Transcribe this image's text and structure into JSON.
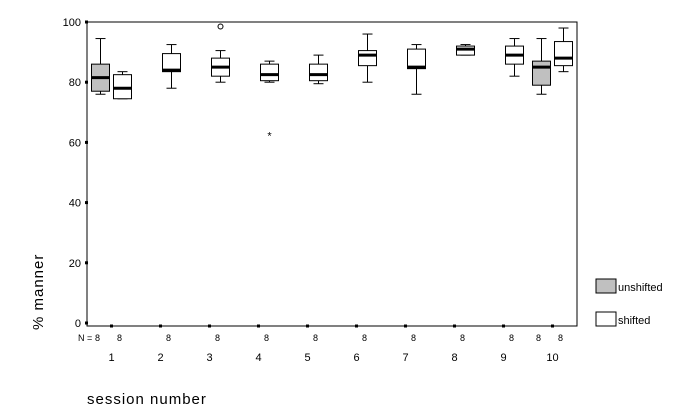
{
  "chart_data": {
    "type": "boxplot",
    "xlabel": "session number",
    "ylabel": "% manner",
    "ylim": [
      0,
      100
    ],
    "yticks": [
      "0",
      "20",
      "40",
      "60",
      "80",
      "100"
    ],
    "categories": [
      "1",
      "2",
      "3",
      "4",
      "5",
      "6",
      "7",
      "8",
      "9",
      "10"
    ],
    "n_label": "N =",
    "legend_position": "bottom-right",
    "series": [
      {
        "name": "unshifted",
        "color": "#c0c0c0",
        "boxes": [
          {
            "category": "1",
            "n": "8",
            "min": 76,
            "q1": 77,
            "median": 81.5,
            "q3": 86,
            "max": 94.5,
            "outliers": [],
            "extremes": []
          },
          {
            "category": "10",
            "n": "8",
            "min": 76,
            "q1": 79,
            "median": 85,
            "q3": 87,
            "max": 94.5,
            "outliers": [],
            "extremes": []
          }
        ]
      },
      {
        "name": "shifted",
        "color": "#ffffff",
        "boxes": [
          {
            "category": "1",
            "n": "8",
            "min": 74.5,
            "q1": 74.5,
            "median": 78,
            "q3": 82.5,
            "max": 83.5,
            "outliers": [],
            "extremes": []
          },
          {
            "category": "2",
            "n": "8",
            "min": 78,
            "q1": 83.5,
            "median": 84,
            "q3": 89.5,
            "max": 92.5,
            "outliers": [],
            "extremes": []
          },
          {
            "category": "3",
            "n": "8",
            "min": 80,
            "q1": 82,
            "median": 85,
            "q3": 88,
            "max": 90.5,
            "outliers": [
              98.5
            ],
            "extremes": []
          },
          {
            "category": "4",
            "n": "8",
            "min": 80,
            "q1": 80.5,
            "median": 82.5,
            "q3": 86,
            "max": 87,
            "outliers": [],
            "extremes": [
              63
            ]
          },
          {
            "category": "5",
            "n": "8",
            "min": 79.5,
            "q1": 80.5,
            "median": 82.5,
            "q3": 86,
            "max": 89,
            "outliers": [],
            "extremes": []
          },
          {
            "category": "6",
            "n": "8",
            "min": 80,
            "q1": 85.5,
            "median": 89,
            "q3": 90.5,
            "max": 96,
            "outliers": [],
            "extremes": []
          },
          {
            "category": "7",
            "n": "8",
            "min": 76,
            "q1": 84.5,
            "median": 85,
            "q3": 91,
            "max": 92.5,
            "outliers": [],
            "extremes": []
          },
          {
            "category": "8",
            "n": "8",
            "min": 89,
            "q1": 89,
            "median": 91,
            "q3": 92,
            "max": 92.5,
            "outliers": [],
            "extremes": []
          },
          {
            "category": "9",
            "n": "8",
            "min": 82,
            "q1": 86,
            "median": 89,
            "q3": 92,
            "max": 94.5,
            "outliers": [],
            "extremes": []
          },
          {
            "category": "10",
            "n": "8",
            "min": 83.5,
            "q1": 85.5,
            "median": 88,
            "q3": 93.5,
            "max": 98,
            "outliers": [],
            "extremes": []
          }
        ]
      }
    ]
  }
}
